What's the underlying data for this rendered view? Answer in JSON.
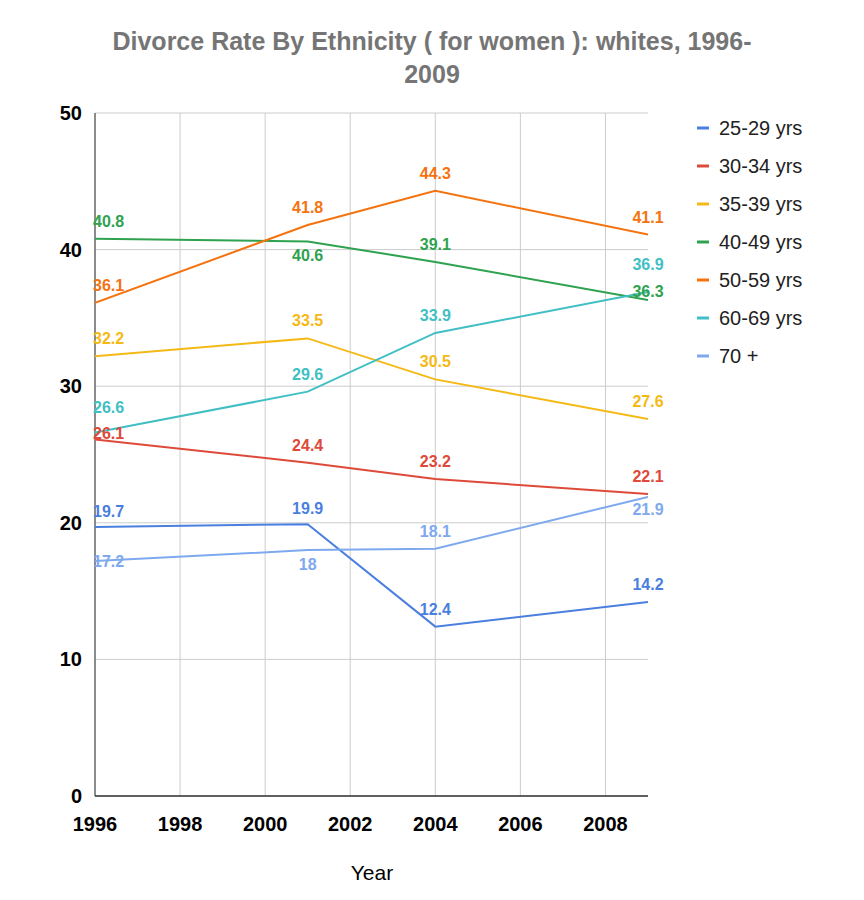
{
  "chart_data": {
    "type": "line",
    "title": "Divorce Rate By Ethnicity ( for women ): whites, 1996-2009",
    "x_label": "Year",
    "x": [
      1996,
      2001,
      2004,
      2009
    ],
    "xlim": [
      1996,
      2009
    ],
    "xticks": [
      1996,
      1998,
      2000,
      2002,
      2004,
      2006,
      2008
    ],
    "ylim": [
      0,
      50
    ],
    "yticks": [
      0,
      10,
      20,
      30,
      40,
      50
    ],
    "grid": true,
    "legend": "right",
    "data_labels": true,
    "series": [
      {
        "name": "25-29 yrs",
        "color": "#4a7fe0",
        "values": [
          19.7,
          19.9,
          12.4,
          14.2
        ]
      },
      {
        "name": "30-34 yrs",
        "color": "#de4a3a",
        "values": [
          26.1,
          24.4,
          23.2,
          22.1
        ]
      },
      {
        "name": "35-39 yrs",
        "color": "#f5b915",
        "values": [
          32.2,
          33.5,
          30.5,
          27.6
        ]
      },
      {
        "name": "40-49 yrs",
        "color": "#2fa24f",
        "values": [
          40.8,
          40.6,
          39.1,
          36.3
        ]
      },
      {
        "name": "50-59 yrs",
        "color": "#f5730f",
        "values": [
          36.1,
          41.8,
          44.3,
          41.1
        ]
      },
      {
        "name": "60-69 yrs",
        "color": "#40bfc4",
        "values": [
          26.6,
          29.6,
          33.9,
          36.9
        ]
      },
      {
        "name": "70 +",
        "color": "#7fa9ef",
        "values": [
          17.2,
          18,
          18.1,
          21.9
        ]
      }
    ]
  }
}
